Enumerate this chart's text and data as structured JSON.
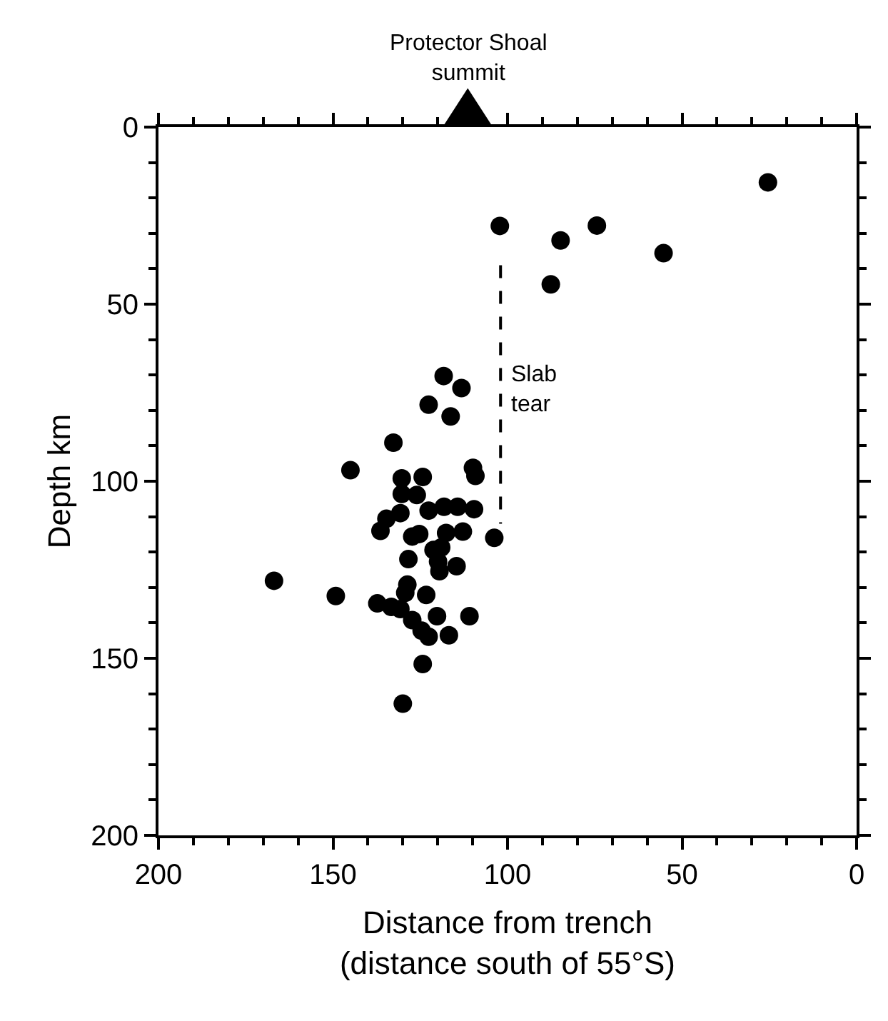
{
  "chart_data": {
    "type": "scatter",
    "xlabel": "Distance from trench\n(distance south of 55°S)",
    "ylabel": "Depth km",
    "xlim": [
      200,
      0
    ],
    "xticks": [
      200,
      150,
      100,
      50,
      0
    ],
    "ylim": [
      200,
      0
    ],
    "yticks": [
      0,
      50,
      100,
      150,
      200
    ],
    "marker": "circle",
    "annotations": [
      "Protector Shoal\nsummit",
      {
        "text": "Slab\ntear",
        "x": 100,
        "y": 74
      }
    ],
    "series": [
      {
        "color": "#000000",
        "x": [
          25.4,
          102.2,
          84.8,
          74.4,
          55.3,
          87.6,
          118.3,
          113.2,
          122.6,
          116.3,
          132.7,
          145,
          109.9,
          109.2,
          130.3,
          124.3,
          130.3,
          126,
          122.6,
          118.2,
          114.3,
          109.6,
          130.7,
          134.7,
          136.4,
          103.8,
          112.8,
          117.6,
          127.3,
          125.3,
          121.2,
          119,
          128.4,
          119.9,
          119.5,
          114.6,
          166.9,
          149.2,
          128.7,
          129.3,
          123.3,
          137.3,
          133.3,
          130.7,
          127.3,
          120.2,
          110.9,
          124.6,
          122.6,
          116.8,
          124.3,
          130
        ],
        "values": [
          15.6,
          27.9,
          32,
          27.8,
          35.6,
          44.4,
          70.3,
          73.7,
          78.4,
          81.7,
          89.1,
          96.9,
          96.2,
          98.5,
          99.2,
          98.8,
          103.6,
          103.9,
          108.3,
          107.2,
          107.2,
          107.9,
          109,
          110.6,
          114,
          116,
          114.2,
          114.6,
          115.6,
          114.9,
          119.4,
          118.7,
          122,
          122.7,
          125.4,
          124,
          128.1,
          132.4,
          129.2,
          131.5,
          132.1,
          134.5,
          135.5,
          136.1,
          139.2,
          138.1,
          138.1,
          142.2,
          143.9,
          143.5,
          151.6,
          162.8
        ]
      },
      {
        "type": "line",
        "color": "#000000",
        "line_style": "dashed",
        "marker": "none",
        "x": [
          102,
          102
        ],
        "values": [
          39,
          112
        ]
      }
    ]
  }
}
